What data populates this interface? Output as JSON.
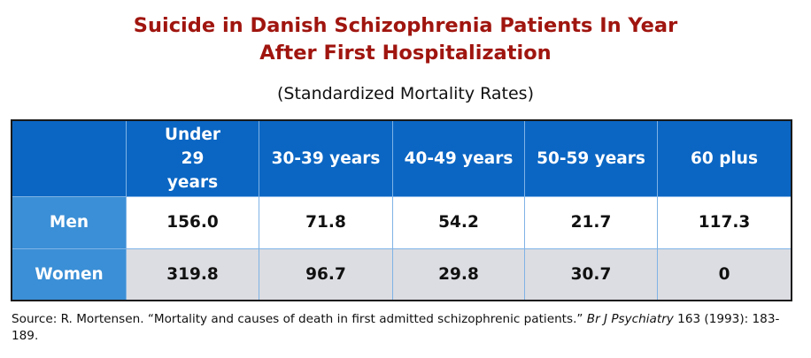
{
  "title_line1": "Suicide in Danish Schizophrenia Patients In Year",
  "title_line2": "After First Hospitalization",
  "subtitle": "(Standardized Mortality Rates)",
  "table": {
    "headers": [
      "Under 29 years",
      "30-39 years",
      "40-49 years",
      "50-59 years",
      "60 plus"
    ],
    "rows": [
      {
        "label": "Men",
        "values": [
          "156.0",
          "71.8",
          "54.2",
          "21.7",
          "117.3"
        ]
      },
      {
        "label": "Women",
        "values": [
          "319.8",
          "96.7",
          "29.8",
          "30.7",
          "0"
        ]
      }
    ]
  },
  "source": {
    "prefix": "Source: R. Mortensen. “Mortality and causes of death in first admitted schizophrenic patients.” ",
    "journal": "Br J Psychiatry",
    "suffix": " 163 (1993): 183-189."
  },
  "colors": {
    "title": "#a0150f",
    "header_bg": "#0b66c3",
    "row_label_bg": "#3b8fd6",
    "alt_row_bg": "#dcdde2"
  }
}
